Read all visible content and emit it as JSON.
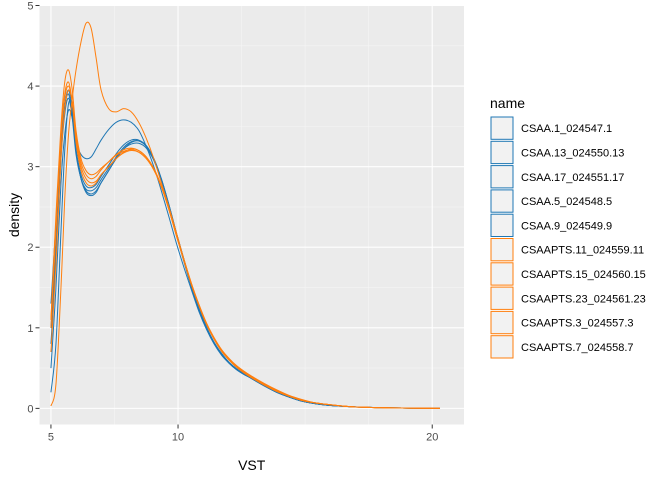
{
  "chart_data": {
    "type": "line",
    "title": "",
    "xlabel": "VST",
    "ylabel": "density",
    "xlim": [
      4.55,
      21.25
    ],
    "ylim": [
      -0.2,
      5.0
    ],
    "xticks": [
      5,
      10,
      20
    ],
    "xticks_minor": [
      7.5,
      12.5,
      15,
      17.5
    ],
    "yticks": [
      0,
      1,
      2,
      3,
      4,
      5
    ],
    "grid": true,
    "legend_title": "name",
    "legend_position": "right",
    "colors": {
      "blue": "#1f77b4",
      "orange": "#ff7f0e",
      "panel": "#ebebeb",
      "grid": "#ffffff"
    },
    "base_x": [
      5.0,
      5.2,
      5.4,
      5.55,
      5.7,
      5.85,
      6.0,
      6.2,
      6.4,
      6.6,
      6.8,
      7.0,
      7.3,
      7.6,
      7.9,
      8.2,
      8.5,
      8.8,
      9.1,
      9.4,
      9.7,
      10.0,
      10.3,
      10.6,
      10.9,
      11.2,
      11.5,
      11.8,
      12.1,
      12.4,
      12.7,
      13.0,
      13.5,
      14.0,
      14.5,
      15.0,
      15.5,
      16.0,
      17.0,
      18.0,
      19.0,
      20.0,
      20.5
    ],
    "series": [
      {
        "name": "CSAA.1_024547.1",
        "color": "#1f77b4",
        "x0": 5.0,
        "x1": 20.3,
        "y": [
          0.5,
          1.5,
          2.8,
          3.4,
          3.7,
          3.6,
          3.3,
          3.15,
          3.1,
          3.12,
          3.22,
          3.33,
          3.46,
          3.55,
          3.58,
          3.55,
          3.45,
          3.25,
          3.0,
          2.7,
          2.38,
          2.05,
          1.75,
          1.47,
          1.2,
          0.98,
          0.8,
          0.66,
          0.56,
          0.48,
          0.42,
          0.37,
          0.28,
          0.2,
          0.14,
          0.09,
          0.06,
          0.04,
          0.02,
          0.01,
          0.005,
          0.002,
          0.0
        ]
      },
      {
        "name": "CSAA.13_024550.13",
        "color": "#1f77b4",
        "x0": 5.0,
        "x1": 20.3,
        "y": [
          0.8,
          1.9,
          3.1,
          3.65,
          3.85,
          3.6,
          3.15,
          2.85,
          2.72,
          2.7,
          2.74,
          2.84,
          2.98,
          3.12,
          3.24,
          3.31,
          3.32,
          3.25,
          3.08,
          2.82,
          2.5,
          2.15,
          1.82,
          1.5,
          1.22,
          0.99,
          0.81,
          0.67,
          0.56,
          0.48,
          0.42,
          0.37,
          0.28,
          0.2,
          0.14,
          0.09,
          0.06,
          0.04,
          0.02,
          0.01,
          0.005,
          0.002,
          0.0
        ]
      },
      {
        "name": "CSAA.17_024551.17",
        "color": "#1f77b4",
        "x0": 5.0,
        "x1": 20.3,
        "y": [
          0.2,
          0.8,
          2.2,
          3.2,
          3.78,
          3.7,
          3.2,
          2.85,
          2.68,
          2.64,
          2.68,
          2.8,
          2.95,
          3.1,
          3.22,
          3.28,
          3.29,
          3.23,
          3.08,
          2.84,
          2.52,
          2.17,
          1.84,
          1.52,
          1.24,
          1.0,
          0.82,
          0.68,
          0.57,
          0.49,
          0.43,
          0.37,
          0.28,
          0.2,
          0.14,
          0.09,
          0.06,
          0.04,
          0.02,
          0.01,
          0.005,
          0.002,
          0.0
        ]
      },
      {
        "name": "CSAA.5_024548.5",
        "color": "#1f77b4",
        "x0": 5.0,
        "x1": 20.3,
        "y": [
          1.3,
          2.3,
          3.3,
          3.75,
          3.9,
          3.65,
          3.2,
          2.85,
          2.7,
          2.66,
          2.7,
          2.8,
          2.95,
          3.1,
          3.22,
          3.3,
          3.32,
          3.26,
          3.1,
          2.85,
          2.53,
          2.18,
          1.85,
          1.53,
          1.25,
          1.01,
          0.82,
          0.68,
          0.57,
          0.49,
          0.43,
          0.37,
          0.28,
          0.2,
          0.14,
          0.09,
          0.06,
          0.04,
          0.02,
          0.01,
          0.005,
          0.002,
          0.0
        ]
      },
      {
        "name": "CSAA.9_024549.9",
        "color": "#1f77b4",
        "x0": 5.0,
        "x1": 20.3,
        "y": [
          1.0,
          2.0,
          3.2,
          3.75,
          3.95,
          3.7,
          3.22,
          2.9,
          2.76,
          2.74,
          2.78,
          2.88,
          3.02,
          3.16,
          3.27,
          3.33,
          3.33,
          3.26,
          3.1,
          2.85,
          2.53,
          2.18,
          1.85,
          1.53,
          1.25,
          1.01,
          0.82,
          0.68,
          0.57,
          0.49,
          0.43,
          0.37,
          0.28,
          0.2,
          0.14,
          0.09,
          0.06,
          0.04,
          0.02,
          0.01,
          0.005,
          0.002,
          0.0
        ]
      },
      {
        "name": "CSAAPTS.11_024559.11",
        "color": "#ff7f0e",
        "x0": 5.0,
        "x1": 20.3,
        "y": [
          1.1,
          2.3,
          3.4,
          3.9,
          4.05,
          3.8,
          3.3,
          2.95,
          2.8,
          2.76,
          2.8,
          2.9,
          3.0,
          3.1,
          3.18,
          3.22,
          3.2,
          3.12,
          2.98,
          2.76,
          2.47,
          2.14,
          1.83,
          1.53,
          1.27,
          1.04,
          0.86,
          0.71,
          0.6,
          0.51,
          0.44,
          0.38,
          0.29,
          0.21,
          0.15,
          0.1,
          0.07,
          0.05,
          0.02,
          0.01,
          0.005,
          0.002,
          0.0
        ]
      },
      {
        "name": "CSAAPTS.15_024560.15",
        "color": "#ff7f0e",
        "x0": 5.0,
        "x1": 20.3,
        "y": [
          1.0,
          2.2,
          3.35,
          3.85,
          4.0,
          3.8,
          3.35,
          3.0,
          2.85,
          2.8,
          2.82,
          2.9,
          3.0,
          3.1,
          3.17,
          3.2,
          3.18,
          3.1,
          2.96,
          2.75,
          2.47,
          2.15,
          1.84,
          1.54,
          1.28,
          1.05,
          0.87,
          0.72,
          0.61,
          0.52,
          0.45,
          0.39,
          0.3,
          0.22,
          0.15,
          0.1,
          0.07,
          0.05,
          0.02,
          0.01,
          0.005,
          0.002,
          0.0
        ]
      },
      {
        "name": "CSAAPTS.23_024561.23",
        "color": "#ff7f0e",
        "x0": 5.0,
        "x1": 20.3,
        "y": [
          0.7,
          1.8,
          3.1,
          3.7,
          3.95,
          3.8,
          3.4,
          3.05,
          2.9,
          2.85,
          2.88,
          2.96,
          3.06,
          3.15,
          3.21,
          3.23,
          3.2,
          3.12,
          2.97,
          2.76,
          2.48,
          2.16,
          1.85,
          1.55,
          1.29,
          1.06,
          0.88,
          0.73,
          0.62,
          0.53,
          0.46,
          0.4,
          0.31,
          0.23,
          0.16,
          0.11,
          0.07,
          0.05,
          0.02,
          0.01,
          0.005,
          0.002,
          0.0
        ]
      },
      {
        "name": "CSAAPTS.3_024557.3",
        "color": "#ff7f0e",
        "x0": 5.0,
        "x1": 20.3,
        "y": [
          0.03,
          0.3,
          1.5,
          2.6,
          3.4,
          3.85,
          4.2,
          4.55,
          4.78,
          4.72,
          4.35,
          3.95,
          3.72,
          3.68,
          3.72,
          3.68,
          3.55,
          3.35,
          3.1,
          2.8,
          2.5,
          2.18,
          1.85,
          1.55,
          1.28,
          1.05,
          0.86,
          0.71,
          0.6,
          0.51,
          0.44,
          0.38,
          0.29,
          0.21,
          0.15,
          0.1,
          0.07,
          0.05,
          0.02,
          0.01,
          0.005,
          0.002,
          0.0
        ]
      },
      {
        "name": "CSAAPTS.7_024558.7",
        "color": "#ff7f0e",
        "x0": 5.0,
        "x1": 20.3,
        "y": [
          1.1,
          2.4,
          3.5,
          4.05,
          4.2,
          3.95,
          3.45,
          3.1,
          2.95,
          2.9,
          2.92,
          2.98,
          3.06,
          3.14,
          3.19,
          3.21,
          3.18,
          3.1,
          2.96,
          2.75,
          2.47,
          2.15,
          1.84,
          1.54,
          1.28,
          1.05,
          0.87,
          0.72,
          0.61,
          0.52,
          0.45,
          0.39,
          0.3,
          0.22,
          0.15,
          0.1,
          0.07,
          0.05,
          0.02,
          0.01,
          0.005,
          0.002,
          0.0
        ]
      }
    ]
  }
}
